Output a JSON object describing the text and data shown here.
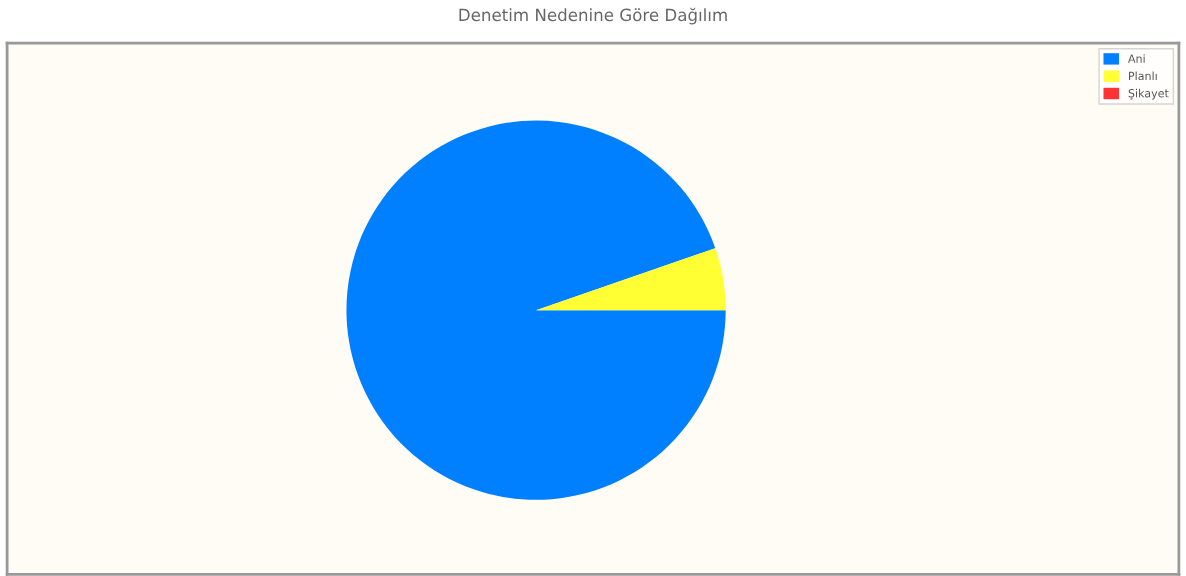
{
  "chart_data": {
    "type": "pie",
    "title": "Denetim Nedenine Göre Dağılım",
    "categories": [
      "Ani",
      "Planlı",
      "Şikayet"
    ],
    "values": [
      94.7,
      5.3,
      0
    ],
    "colors": [
      "#0080ff",
      "#ffff33",
      "#ff3333"
    ],
    "legend": "top right"
  }
}
